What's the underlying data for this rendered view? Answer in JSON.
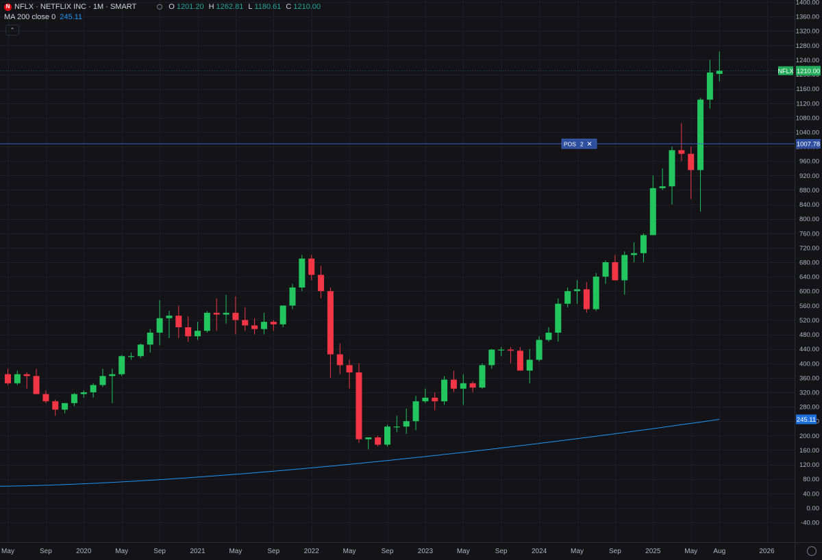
{
  "header": {
    "symbol_title": "NFLX · NETFLIX INC · 1M · SMART",
    "logo_letter": "N",
    "o_label": "O",
    "o_value": "1201.20",
    "h_label": "H",
    "h_value": "1262.81",
    "l_label": "L",
    "l_value": "1180.61",
    "c_label": "C",
    "c_value": "1210.00"
  },
  "indicator": {
    "label": "MA 200 close 0",
    "value": "245.11"
  },
  "collapse_icon": "chevron-up-icon",
  "chart_data": {
    "type": "candlestick",
    "y_axis": {
      "min": -40,
      "max": 1400,
      "step": 40,
      "ticks": [
        "1400.00",
        "1360.00",
        "1320.00",
        "1280.00",
        "1240.00",
        "1200.00",
        "1160.00",
        "1120.00",
        "1080.00",
        "1040.00",
        "1000.00",
        "960.00",
        "920.00",
        "880.00",
        "840.00",
        "800.00",
        "760.00",
        "720.00",
        "680.00",
        "640.00",
        "600.00",
        "560.00",
        "520.00",
        "480.00",
        "440.00",
        "400.00",
        "360.00",
        "320.00",
        "280.00",
        "240.00",
        "200.00",
        "160.00",
        "120.00",
        "80.00",
        "40.00",
        "0.00",
        "-40.00"
      ]
    },
    "x_axis": {
      "labels": [
        {
          "text": "May",
          "idx": 0
        },
        {
          "text": "Sep",
          "idx": 4
        },
        {
          "text": "2020",
          "idx": 8
        },
        {
          "text": "May",
          "idx": 12
        },
        {
          "text": "Sep",
          "idx": 16
        },
        {
          "text": "2021",
          "idx": 20
        },
        {
          "text": "May",
          "idx": 24
        },
        {
          "text": "Sep",
          "idx": 28
        },
        {
          "text": "2022",
          "idx": 32
        },
        {
          "text": "May",
          "idx": 36
        },
        {
          "text": "Sep",
          "idx": 40
        },
        {
          "text": "2023",
          "idx": 44
        },
        {
          "text": "May",
          "idx": 48
        },
        {
          "text": "Sep",
          "idx": 52
        },
        {
          "text": "2024",
          "idx": 56
        },
        {
          "text": "May",
          "idx": 60
        },
        {
          "text": "Sep",
          "idx": 64
        },
        {
          "text": "2025",
          "idx": 68
        },
        {
          "text": "May",
          "idx": 72
        },
        {
          "text": "Aug",
          "idx": 75
        },
        {
          "text": "2026",
          "idx": 80
        }
      ]
    },
    "candles": [
      {
        "o": 370,
        "h": 385,
        "l": 340,
        "c": 345
      },
      {
        "o": 345,
        "h": 380,
        "l": 340,
        "c": 370
      },
      {
        "o": 370,
        "h": 375,
        "l": 330,
        "c": 365
      },
      {
        "o": 365,
        "h": 385,
        "l": 320,
        "c": 315
      },
      {
        "o": 315,
        "h": 325,
        "l": 290,
        "c": 295
      },
      {
        "o": 295,
        "h": 300,
        "l": 255,
        "c": 272
      },
      {
        "o": 272,
        "h": 290,
        "l": 262,
        "c": 290
      },
      {
        "o": 290,
        "h": 318,
        "l": 282,
        "c": 315
      },
      {
        "o": 315,
        "h": 325,
        "l": 305,
        "c": 320
      },
      {
        "o": 320,
        "h": 345,
        "l": 305,
        "c": 340
      },
      {
        "o": 340,
        "h": 385,
        "l": 335,
        "c": 365
      },
      {
        "o": 365,
        "h": 385,
        "l": 290,
        "c": 370
      },
      {
        "o": 370,
        "h": 423,
        "l": 365,
        "c": 420
      },
      {
        "o": 420,
        "h": 430,
        "l": 410,
        "c": 420
      },
      {
        "o": 420,
        "h": 455,
        "l": 415,
        "c": 452
      },
      {
        "o": 452,
        "h": 495,
        "l": 430,
        "c": 485
      },
      {
        "o": 485,
        "h": 575,
        "l": 450,
        "c": 525
      },
      {
        "o": 525,
        "h": 545,
        "l": 470,
        "c": 532
      },
      {
        "o": 532,
        "h": 560,
        "l": 470,
        "c": 500
      },
      {
        "o": 500,
        "h": 530,
        "l": 460,
        "c": 475
      },
      {
        "o": 475,
        "h": 515,
        "l": 465,
        "c": 490
      },
      {
        "o": 490,
        "h": 545,
        "l": 485,
        "c": 540
      },
      {
        "o": 540,
        "h": 580,
        "l": 490,
        "c": 535
      },
      {
        "o": 535,
        "h": 590,
        "l": 510,
        "c": 540
      },
      {
        "o": 540,
        "h": 585,
        "l": 480,
        "c": 520
      },
      {
        "o": 520,
        "h": 555,
        "l": 490,
        "c": 505
      },
      {
        "o": 505,
        "h": 525,
        "l": 480,
        "c": 495
      },
      {
        "o": 495,
        "h": 540,
        "l": 480,
        "c": 515
      },
      {
        "o": 515,
        "h": 520,
        "l": 490,
        "c": 508
      },
      {
        "o": 508,
        "h": 560,
        "l": 500,
        "c": 560
      },
      {
        "o": 560,
        "h": 620,
        "l": 550,
        "c": 610
      },
      {
        "o": 610,
        "h": 700,
        "l": 600,
        "c": 690
      },
      {
        "o": 690,
        "h": 700,
        "l": 630,
        "c": 645
      },
      {
        "o": 645,
        "h": 670,
        "l": 580,
        "c": 600
      },
      {
        "o": 600,
        "h": 610,
        "l": 360,
        "c": 425
      },
      {
        "o": 425,
        "h": 455,
        "l": 370,
        "c": 395
      },
      {
        "o": 395,
        "h": 410,
        "l": 330,
        "c": 375
      },
      {
        "o": 375,
        "h": 400,
        "l": 180,
        "c": 190
      },
      {
        "o": 190,
        "h": 195,
        "l": 162,
        "c": 195
      },
      {
        "o": 195,
        "h": 200,
        "l": 170,
        "c": 175
      },
      {
        "o": 175,
        "h": 230,
        "l": 170,
        "c": 225
      },
      {
        "o": 225,
        "h": 255,
        "l": 210,
        "c": 225
      },
      {
        "o": 225,
        "h": 275,
        "l": 205,
        "c": 240
      },
      {
        "o": 240,
        "h": 310,
        "l": 215,
        "c": 295
      },
      {
        "o": 295,
        "h": 330,
        "l": 290,
        "c": 305
      },
      {
        "o": 305,
        "h": 320,
        "l": 270,
        "c": 295
      },
      {
        "o": 295,
        "h": 365,
        "l": 285,
        "c": 355
      },
      {
        "o": 355,
        "h": 380,
        "l": 320,
        "c": 330
      },
      {
        "o": 330,
        "h": 370,
        "l": 285,
        "c": 345
      },
      {
        "o": 345,
        "h": 350,
        "l": 320,
        "c": 333
      },
      {
        "o": 333,
        "h": 400,
        "l": 330,
        "c": 395
      },
      {
        "o": 395,
        "h": 440,
        "l": 385,
        "c": 438
      },
      {
        "o": 438,
        "h": 445,
        "l": 420,
        "c": 438
      },
      {
        "o": 438,
        "h": 445,
        "l": 400,
        "c": 435
      },
      {
        "o": 435,
        "h": 445,
        "l": 380,
        "c": 380
      },
      {
        "o": 380,
        "h": 440,
        "l": 345,
        "c": 410
      },
      {
        "o": 410,
        "h": 475,
        "l": 405,
        "c": 465
      },
      {
        "o": 465,
        "h": 500,
        "l": 460,
        "c": 485
      },
      {
        "o": 485,
        "h": 580,
        "l": 460,
        "c": 565
      },
      {
        "o": 565,
        "h": 610,
        "l": 555,
        "c": 600
      },
      {
        "o": 600,
        "h": 630,
        "l": 565,
        "c": 605
      },
      {
        "o": 605,
        "h": 625,
        "l": 540,
        "c": 550
      },
      {
        "o": 550,
        "h": 650,
        "l": 545,
        "c": 640
      },
      {
        "o": 640,
        "h": 685,
        "l": 620,
        "c": 680
      },
      {
        "o": 680,
        "h": 700,
        "l": 630,
        "c": 630
      },
      {
        "o": 630,
        "h": 710,
        "l": 590,
        "c": 700
      },
      {
        "o": 700,
        "h": 735,
        "l": 680,
        "c": 705
      },
      {
        "o": 705,
        "h": 760,
        "l": 680,
        "c": 755
      },
      {
        "o": 755,
        "h": 920,
        "l": 755,
        "c": 885
      },
      {
        "o": 885,
        "h": 940,
        "l": 880,
        "c": 890
      },
      {
        "o": 890,
        "h": 1000,
        "l": 840,
        "c": 990
      },
      {
        "o": 990,
        "h": 1065,
        "l": 960,
        "c": 980
      },
      {
        "o": 980,
        "h": 1000,
        "l": 855,
        "c": 935
      },
      {
        "o": 935,
        "h": 1135,
        "l": 820,
        "c": 1130
      },
      {
        "o": 1130,
        "h": 1240,
        "l": 1105,
        "c": 1205
      },
      {
        "o": 1201.2,
        "h": 1262.81,
        "l": 1180.61,
        "c": 1210.0
      }
    ],
    "ma": {
      "name": "MA 200 close 0",
      "start": 60,
      "end": 245.11
    },
    "price_line": {
      "label": "NFLX",
      "value": 1210.0,
      "value_text": "1210.00"
    },
    "position_line": {
      "value": 1007.78,
      "value_text": "1007.78",
      "label": "POS",
      "qty": "2"
    },
    "colors": {
      "up": "#26a69a",
      "up_body": "#22c55e",
      "down": "#f23645",
      "bg": "#131318",
      "grid": "#1e1f26",
      "axis_text": "#b2b5be",
      "ma": "#2196f3",
      "pos": "#2962ff"
    }
  }
}
